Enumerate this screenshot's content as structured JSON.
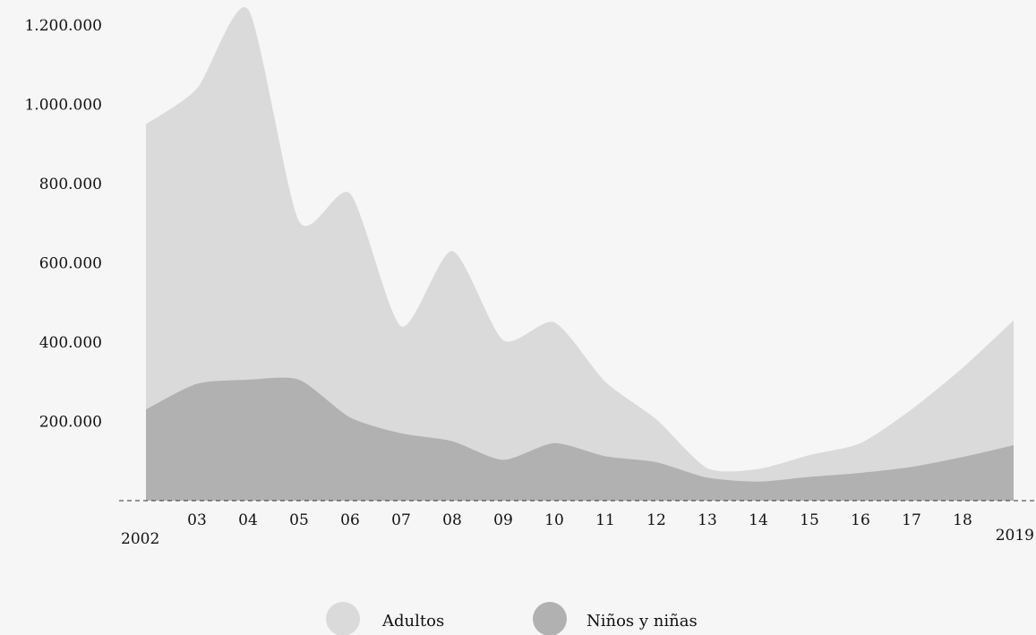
{
  "chart_data": {
    "type": "area",
    "stacked": false,
    "x": [
      "2002",
      "03",
      "04",
      "05",
      "06",
      "07",
      "08",
      "09",
      "10",
      "11",
      "12",
      "13",
      "14",
      "15",
      "16",
      "17",
      "18",
      "2019"
    ],
    "series": [
      {
        "name": "Adultos",
        "color": "#dadada",
        "values": [
          950000,
          1040000,
          1240000,
          705000,
          775000,
          440000,
          630000,
          405000,
          450000,
          300000,
          205000,
          82000,
          80000,
          115000,
          145000,
          230000,
          335000,
          455000
        ]
      },
      {
        "name": "Niños y niñas",
        "color": "#b1b1b1",
        "values": [
          230000,
          295000,
          305000,
          305000,
          210000,
          170000,
          150000,
          103000,
          145000,
          112000,
          97000,
          58000,
          48000,
          60000,
          70000,
          85000,
          110000,
          140000
        ]
      }
    ],
    "y_ticks": [
      "200.000",
      "400.000",
      "600.000",
      "800.000",
      "1.000.000",
      "1.200.000"
    ],
    "y_tick_values": [
      200000,
      400000,
      600000,
      800000,
      1000000,
      1200000
    ],
    "ylim": [
      0,
      1250000
    ],
    "baseline_style": "dashed",
    "grid": false,
    "legend_position": "bottom-center"
  }
}
